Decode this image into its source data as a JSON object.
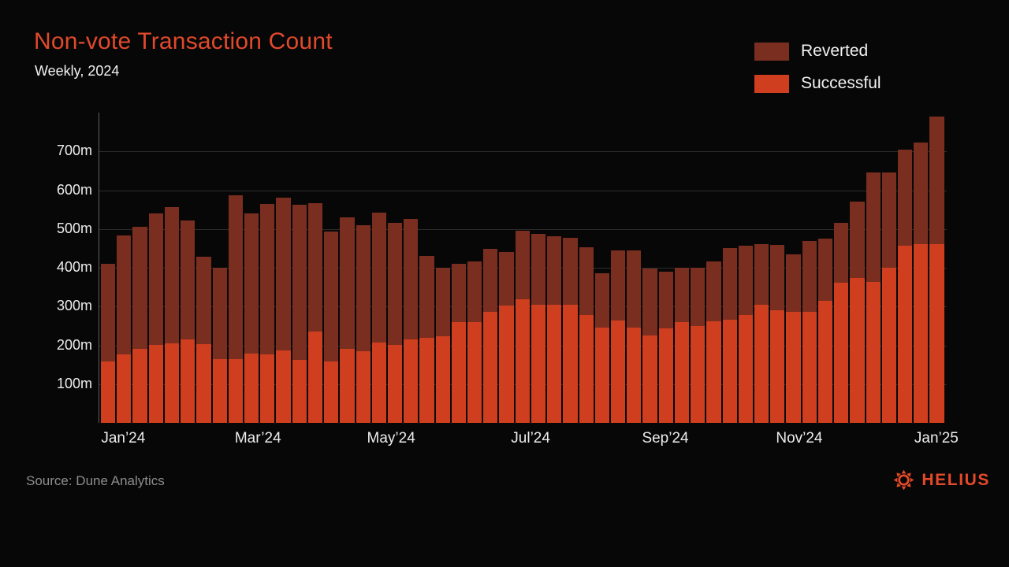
{
  "header": {
    "title": "Non-vote Transaction Count",
    "subtitle": "Weekly, 2024"
  },
  "legend": [
    {
      "label": "Reverted",
      "color": "#7a2e20"
    },
    {
      "label": "Successful",
      "color": "#cf3e1f"
    }
  ],
  "footer": {
    "source": "Source: Dune Analytics",
    "brand": "HELIUS"
  },
  "colors": {
    "background": "#070707",
    "accent_title": "#e1492c",
    "brand_logo": "#e5492b",
    "gridline": "#2b2b2b",
    "axis_line": "#5f5f5f",
    "reverted": "#7a2e20",
    "successful": "#cf3e1f"
  },
  "chart_data": {
    "type": "bar",
    "stacked": true,
    "title": "Non-vote Transaction Count",
    "subtitle": "Weekly, 2024",
    "unit": "millions of transactions",
    "weeks": 53,
    "ylim": [
      0,
      800
    ],
    "grid": true,
    "legend_position": "top-right",
    "y_ticks": [
      {
        "label": "700m",
        "value": 700
      },
      {
        "label": "600m",
        "value": 600
      },
      {
        "label": "500m",
        "value": 500
      },
      {
        "label": "400m",
        "value": 400
      },
      {
        "label": "300m",
        "value": 300
      },
      {
        "label": "200m",
        "value": 200
      },
      {
        "label": "100m",
        "value": 100
      }
    ],
    "x_ticks": [
      {
        "label": "Jan’24",
        "week": 1.0
      },
      {
        "label": "Mar’24",
        "week": 9.45
      },
      {
        "label": "May’24",
        "week": 17.8
      },
      {
        "label": "Jul’24",
        "week": 26.55
      },
      {
        "label": "Sep’24",
        "week": 35.0
      },
      {
        "label": "Nov’24",
        "week": 43.4
      },
      {
        "label": "Jan’25",
        "week": 52.0
      }
    ],
    "series": [
      {
        "name": "Successful",
        "color": "#cf3e1f",
        "values": [
          158,
          177,
          190,
          201,
          205,
          216,
          203,
          165,
          165,
          178,
          177,
          187,
          163,
          236,
          158,
          190,
          185,
          207,
          202,
          216,
          220,
          224,
          260,
          260,
          287,
          303,
          318,
          305,
          304,
          305,
          279,
          245,
          264,
          245,
          225,
          243,
          259,
          250,
          261,
          266,
          278,
          305,
          290,
          287,
          287,
          315,
          362,
          374,
          364,
          400,
          456,
          460,
          461
        ]
      },
      {
        "name": "Reverted",
        "color": "#7a2e20",
        "values": [
          252,
          306,
          316,
          339,
          351,
          305,
          226,
          235,
          422,
          362,
          388,
          394,
          400,
          331,
          336,
          339,
          325,
          335,
          314,
          309,
          210,
          176,
          151,
          156,
          162,
          137,
          177,
          183,
          177,
          172,
          173,
          141,
          180,
          199,
          172,
          146,
          141,
          151,
          156,
          184,
          178,
          155,
          169,
          148,
          182,
          161,
          153,
          196,
          282,
          246,
          249,
          263,
          329
        ]
      }
    ],
    "totals": [
      410,
      483,
      506,
      540,
      556,
      521,
      429,
      400,
      587,
      540,
      565,
      581,
      563,
      567,
      494,
      529,
      510,
      542,
      516,
      525,
      430,
      400,
      411,
      416,
      449,
      440,
      495,
      488,
      481,
      477,
      452,
      386,
      444,
      444,
      397,
      389,
      400,
      401,
      417,
      450,
      456,
      460,
      459,
      435,
      469,
      476,
      515,
      570,
      646,
      646,
      705,
      723,
      790
    ]
  }
}
